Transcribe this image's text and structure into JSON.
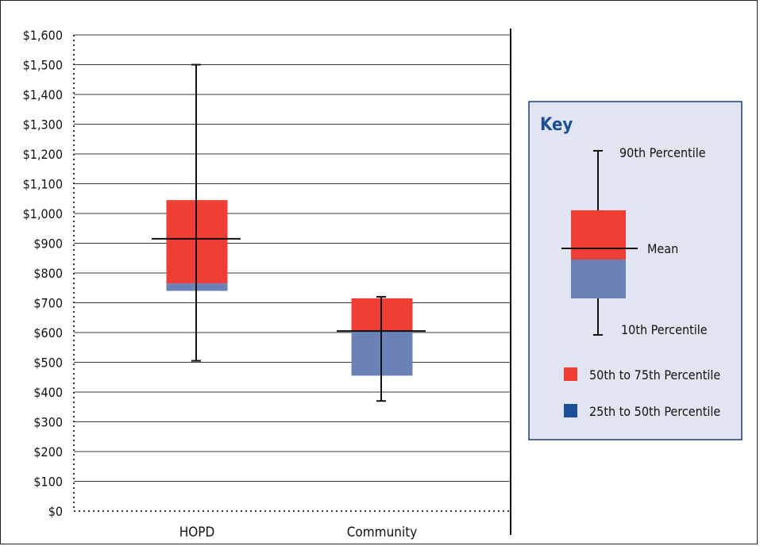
{
  "chart_data": {
    "type": "box",
    "ylim": [
      0,
      1600
    ],
    "y_ticks": [
      0,
      100,
      200,
      300,
      400,
      500,
      600,
      700,
      800,
      900,
      1000,
      1100,
      1200,
      1300,
      1400,
      1500,
      1600
    ],
    "y_tick_labels": [
      "$0",
      "$100",
      "$200",
      "$300",
      "$400",
      "$500",
      "$600",
      "$700",
      "$800",
      "$900",
      "$1,000",
      "$1,100",
      "$1,200",
      "$1,300",
      "$1,400",
      "$1,500",
      "$1,600"
    ],
    "grid": true,
    "categories": [
      "HOPD",
      "Community"
    ],
    "boxes": [
      {
        "label": "HOPD",
        "p10": 505,
        "p25": 740,
        "p50": 765,
        "p75": 1045,
        "p90": 1500,
        "mean": 915
      },
      {
        "label": "Community",
        "p10": 370,
        "p25": 455,
        "p50": 605,
        "p75": 715,
        "p90": 720,
        "mean": 605
      }
    ],
    "colors": {
      "p50_to_p75": "#ef3e36",
      "p25_to_p50": "#6b82b7",
      "key_swatch_p25_to_p50": "#1c4f96",
      "key_background": "#e2e5f1",
      "whisker": "#111111"
    },
    "legend_position": "right",
    "key": {
      "title": "Key",
      "p90": "90th Percentile",
      "mean": "Mean",
      "p10": "10th Percentile",
      "range_75": "50th to 75th Percentile",
      "range_50": "25th to 50th Percentile"
    }
  }
}
